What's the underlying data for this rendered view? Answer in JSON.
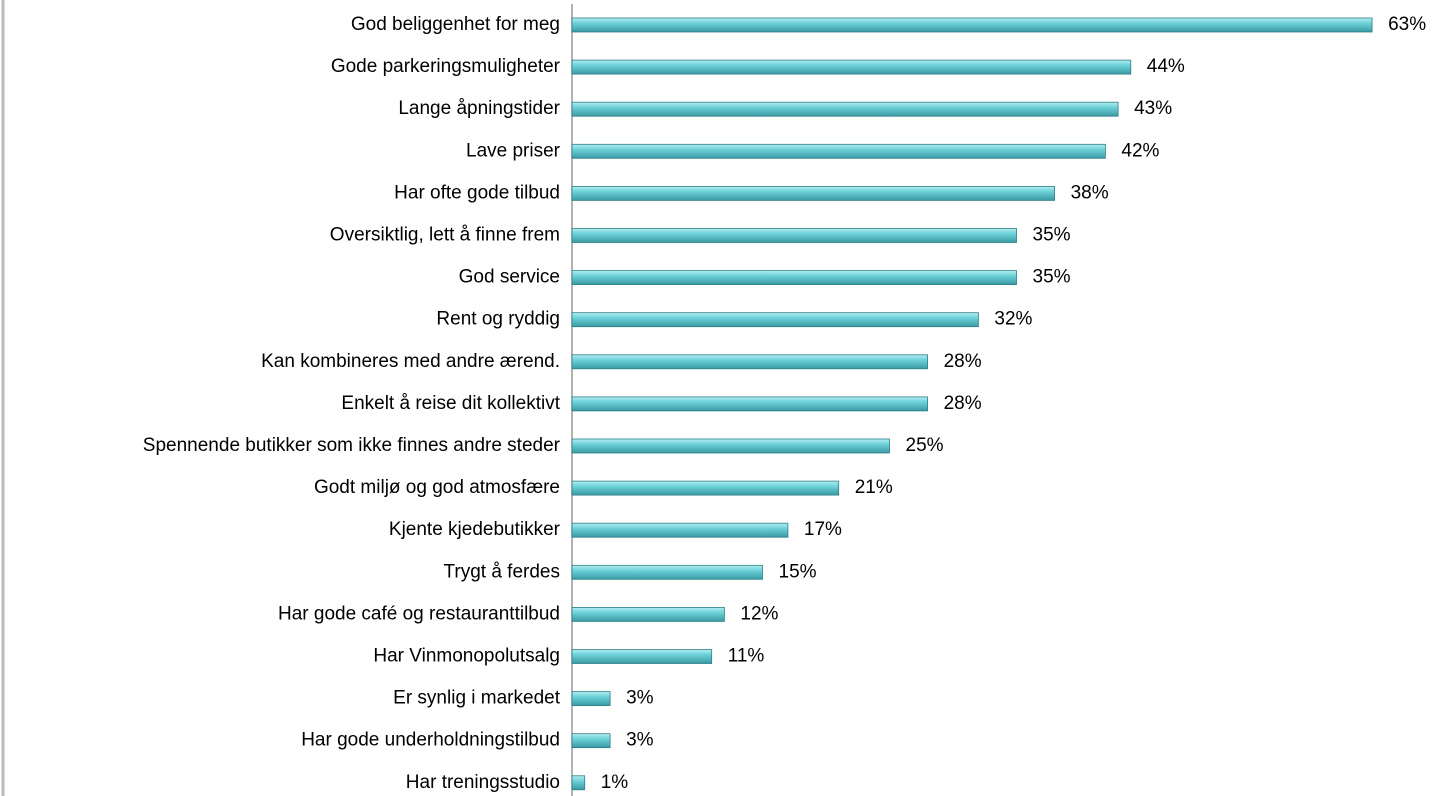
{
  "chart_data": {
    "type": "bar",
    "orientation": "horizontal",
    "color": "#5fc4cc",
    "categories": [
      "God beliggenhet for meg",
      "Gode parkeringsmuligheter",
      "Lange åpningstider",
      "Lave priser",
      "Har ofte gode tilbud",
      "Oversiktlig, lett å finne frem",
      "God service",
      "Rent og ryddig",
      "Kan kombineres med andre ærend.",
      "Enkelt å reise dit kollektivt",
      "Spennende butikker som ikke finnes andre steder",
      "Godt miljø og god atmosfære",
      "Kjente kjedebutikker",
      "Trygt å ferdes",
      "Har gode café og restauranttilbud",
      "Har Vinmonopolutsalg",
      "Er synlig i markedet",
      "Har gode underholdningstilbud",
      "Har treningsstudio"
    ],
    "values": [
      63,
      44,
      43,
      42,
      38,
      35,
      35,
      32,
      28,
      28,
      25,
      21,
      17,
      15,
      12,
      11,
      3,
      3,
      1
    ],
    "value_labels": [
      "63%",
      "44%",
      "43%",
      "42%",
      "38%",
      "35%",
      "35%",
      "32%",
      "28%",
      "28%",
      "25%",
      "21%",
      "17%",
      "15%",
      "12%",
      "11%",
      "3%",
      "3%",
      "1%"
    ]
  }
}
